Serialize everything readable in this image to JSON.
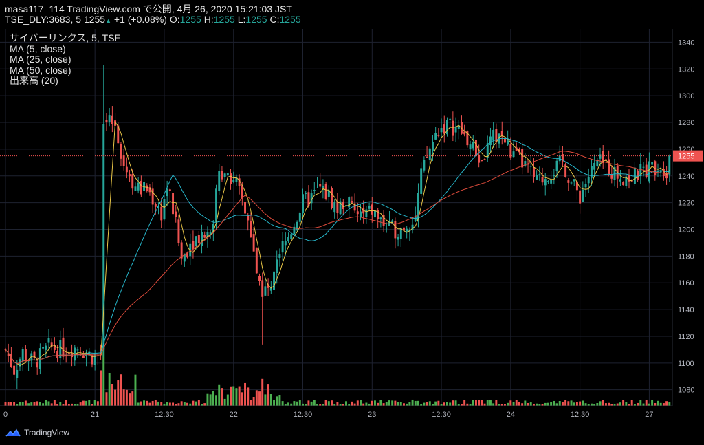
{
  "header": {
    "line1": "masa117_114 TradingView.com で公開, 4月 26, 2020 15:21:03 JST",
    "symbol_interval": "TSE_DLY:3683, 5",
    "last_price": "1255",
    "arrow": "▲",
    "change": "+1 (+0.08%)",
    "o_label": "O:",
    "o_value": "1255",
    "h_label": "H:",
    "h_value": "1255",
    "l_label": "L:",
    "l_value": "1255",
    "c_label": "C:",
    "c_value": "1255"
  },
  "legend": {
    "series_title": "サイバーリンクス, 5, TSE",
    "ma5": "MA (5, close)",
    "ma25": "MA (25, close)",
    "ma50": "MA (50, close)",
    "volume": "出来高 (20)"
  },
  "footer": {
    "brand": "TradingView"
  },
  "colors": {
    "background": "#000000",
    "up": "#26a69a",
    "down": "#ef5350",
    "vol_up": "#4caf50",
    "vol_down": "#ef5350",
    "ma5": "#e8c547",
    "ma25": "#26b5c9",
    "ma50": "#e04c3c",
    "grid": "#1e2230",
    "last_price_line": "#ef5350"
  },
  "chart_data": {
    "type": "candlestick",
    "ylim": [
      1068,
      1350
    ],
    "y_ticks": [
      1080,
      1100,
      1120,
      1140,
      1160,
      1180,
      1200,
      1220,
      1240,
      1260,
      1280,
      1300,
      1320,
      1340
    ],
    "x_ticks": [
      "0",
      "21",
      "12:30",
      "22",
      "12:30",
      "23",
      "12:30",
      "24",
      "12:30",
      "27"
    ],
    "last_price": 1255,
    "last_price_label": "1255",
    "ohlc_knots": [
      [
        0,
        1110
      ],
      [
        3,
        1095
      ],
      [
        6,
        1108
      ],
      [
        10,
        1100
      ],
      [
        15,
        1112
      ],
      [
        20,
        1110
      ],
      [
        25,
        1112
      ],
      [
        30,
        1105
      ],
      [
        33,
        1106
      ],
      [
        34,
        1280
      ],
      [
        38,
        1278
      ],
      [
        41,
        1250
      ],
      [
        43,
        1240
      ],
      [
        46,
        1230
      ],
      [
        49,
        1230
      ],
      [
        52,
        1220
      ],
      [
        54,
        1212
      ],
      [
        56,
        1232
      ],
      [
        58,
        1215
      ],
      [
        61,
        1178
      ],
      [
        64,
        1190
      ],
      [
        67,
        1196
      ],
      [
        70,
        1198
      ],
      [
        72,
        1210
      ],
      [
        74,
        1240
      ],
      [
        76,
        1246
      ],
      [
        79,
        1238
      ],
      [
        82,
        1222
      ],
      [
        84,
        1205
      ],
      [
        86,
        1180
      ],
      [
        88,
        1160
      ],
      [
        90,
        1152
      ],
      [
        92,
        1160
      ],
      [
        94,
        1180
      ],
      [
        97,
        1190
      ],
      [
        100,
        1205
      ],
      [
        103,
        1220
      ],
      [
        106,
        1224
      ],
      [
        109,
        1230
      ],
      [
        112,
        1225
      ],
      [
        115,
        1215
      ],
      [
        118,
        1222
      ],
      [
        121,
        1212
      ],
      [
        124,
        1210
      ],
      [
        127,
        1214
      ],
      [
        130,
        1206
      ],
      [
        133,
        1200
      ],
      [
        136,
        1200
      ],
      [
        139,
        1204
      ],
      [
        142,
        1210
      ],
      [
        144,
        1240
      ],
      [
        147,
        1260
      ],
      [
        150,
        1275
      ],
      [
        153,
        1278
      ],
      [
        156,
        1276
      ],
      [
        159,
        1270
      ],
      [
        162,
        1260
      ],
      [
        165,
        1250
      ],
      [
        168,
        1266
      ],
      [
        171,
        1272
      ],
      [
        174,
        1262
      ],
      [
        176,
        1254
      ],
      [
        178,
        1252
      ],
      [
        181,
        1245
      ],
      [
        184,
        1235
      ],
      [
        187,
        1240
      ],
      [
        190,
        1245
      ],
      [
        193,
        1250
      ],
      [
        196,
        1235
      ],
      [
        199,
        1225
      ],
      [
        202,
        1240
      ],
      [
        205,
        1250
      ],
      [
        208,
        1248
      ],
      [
        211,
        1242
      ],
      [
        214,
        1240
      ],
      [
        217,
        1238
      ],
      [
        220,
        1243
      ],
      [
        223,
        1246
      ],
      [
        226,
        1248
      ],
      [
        229,
        1245
      ],
      [
        230,
        1255
      ]
    ],
    "bar_count": 231
  }
}
